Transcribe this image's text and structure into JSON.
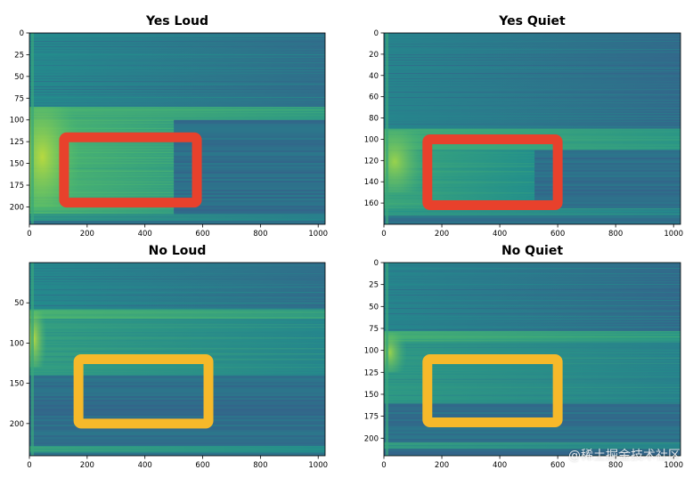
{
  "chart_data": [
    {
      "type": "heatmap",
      "title": "Yes Loud",
      "xticks": [
        0,
        200,
        400,
        600,
        800,
        1000
      ],
      "yticks": [
        0,
        25,
        50,
        75,
        100,
        125,
        150,
        175,
        200
      ],
      "xlim": [
        0,
        1024
      ],
      "ylim": [
        0,
        220
      ],
      "highlight": {
        "x": [
          120,
          580
        ],
        "y": [
          120,
          195
        ],
        "color": "#e8412c"
      },
      "bands": [
        {
          "y": [
            0,
            85
          ],
          "x_end": 1024,
          "intensity": 0.42
        },
        {
          "y": [
            85,
            100
          ],
          "x_end": 1024,
          "intensity": 0.62
        },
        {
          "y": [
            100,
            210
          ],
          "x_end": 500,
          "intensity": 0.64
        },
        {
          "y": [
            208,
            216
          ],
          "x_end": 1024,
          "intensity": 0.5
        }
      ],
      "hotspot": {
        "x": [
          0,
          180
        ],
        "y": [
          85,
          200
        ],
        "intensity": 0.9
      }
    },
    {
      "type": "heatmap",
      "title": "Yes Quiet",
      "xticks": [
        0,
        200,
        400,
        600,
        800,
        1000
      ],
      "yticks": [
        0,
        20,
        40,
        60,
        80,
        100,
        120,
        140,
        160
      ],
      "xlim": [
        0,
        1024
      ],
      "ylim": [
        0,
        180
      ],
      "highlight": {
        "x": [
          150,
          600
        ],
        "y": [
          100,
          162
        ],
        "color": "#e8412c"
      },
      "bands": [
        {
          "y": [
            0,
            90
          ],
          "x_end": 1024,
          "intensity": 0.4
        },
        {
          "y": [
            90,
            110
          ],
          "x_end": 1024,
          "intensity": 0.6
        },
        {
          "y": [
            110,
            165
          ],
          "x_end": 520,
          "intensity": 0.56
        },
        {
          "y": [
            165,
            172
          ],
          "x_end": 1024,
          "intensity": 0.5
        }
      ],
      "hotspot": {
        "x": [
          0,
          150
        ],
        "y": [
          92,
          150
        ],
        "intensity": 0.85
      }
    },
    {
      "type": "heatmap",
      "title": "No Loud",
      "xticks": [
        0,
        200,
        400,
        600,
        800,
        1000
      ],
      "yticks": [
        50,
        100,
        150,
        200
      ],
      "xlim": [
        0,
        1024
      ],
      "ylim": [
        0,
        240
      ],
      "highlight": {
        "x": [
          170,
          620
        ],
        "y": [
          120,
          200
        ],
        "color": "#f6b92a"
      },
      "bands": [
        {
          "y": [
            0,
            58
          ],
          "x_end": 1024,
          "intensity": 0.42
        },
        {
          "y": [
            58,
            70
          ],
          "x_end": 1024,
          "intensity": 0.62
        },
        {
          "y": [
            70,
            140
          ],
          "x_end": 1024,
          "intensity": 0.52
        },
        {
          "y": [
            228,
            236
          ],
          "x_end": 1024,
          "intensity": 0.55
        }
      ],
      "hotspot": {
        "x": [
          0,
          60
        ],
        "y": [
          60,
          130
        ],
        "intensity": 0.9
      }
    },
    {
      "type": "heatmap",
      "title": "No Quiet",
      "xticks": [
        0,
        200,
        400,
        600,
        800,
        1000
      ],
      "yticks": [
        0,
        25,
        50,
        75,
        100,
        125,
        150,
        175,
        200
      ],
      "xlim": [
        0,
        1024
      ],
      "ylim": [
        0,
        220
      ],
      "highlight": {
        "x": [
          150,
          600
        ],
        "y": [
          110,
          182
        ],
        "color": "#f6b92a"
      },
      "bands": [
        {
          "y": [
            0,
            78
          ],
          "x_end": 1024,
          "intensity": 0.4
        },
        {
          "y": [
            78,
            90
          ],
          "x_end": 1024,
          "intensity": 0.6
        },
        {
          "y": [
            90,
            160
          ],
          "x_end": 1024,
          "intensity": 0.5
        },
        {
          "y": [
            205,
            212
          ],
          "x_end": 1024,
          "intensity": 0.52
        }
      ],
      "hotspot": {
        "x": [
          0,
          80
        ],
        "y": [
          80,
          125
        ],
        "intensity": 0.85
      }
    }
  ],
  "watermark": "@稀土掘金技术社区"
}
